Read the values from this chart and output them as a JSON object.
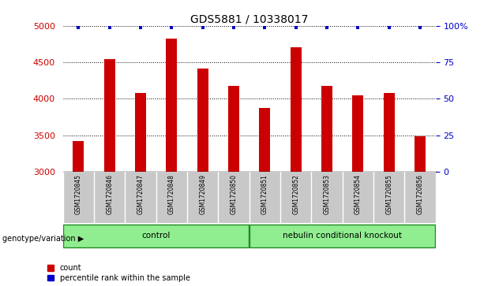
{
  "title": "GDS5881 / 10338017",
  "samples": [
    "GSM1720845",
    "GSM1720846",
    "GSM1720847",
    "GSM1720848",
    "GSM1720849",
    "GSM1720850",
    "GSM1720851",
    "GSM1720852",
    "GSM1720853",
    "GSM1720854",
    "GSM1720855",
    "GSM1720856"
  ],
  "counts": [
    3420,
    4540,
    4080,
    4820,
    4410,
    4170,
    3870,
    4700,
    4170,
    4050,
    4080,
    3480
  ],
  "bar_color": "#CC0000",
  "dot_color": "#0000CC",
  "ylim": [
    3000,
    5000
  ],
  "yticks_left": [
    3000,
    3500,
    4000,
    4500,
    5000
  ],
  "yticks_right": [
    0,
    25,
    50,
    75,
    100
  ],
  "title_fontsize": 10,
  "groups": [
    {
      "label": "control",
      "start": 0,
      "end": 5,
      "color": "#90EE90"
    },
    {
      "label": "nebulin conditional knockout",
      "start": 6,
      "end": 11,
      "color": "#90EE90"
    }
  ],
  "genotype_label": "genotype/variation",
  "legend_count_label": "count",
  "legend_percentile_label": "percentile rank within the sample",
  "label_bg_color": "#C8C8C8",
  "label_divider_color": "#AAAAAA",
  "group_edge_color": "#228B22"
}
